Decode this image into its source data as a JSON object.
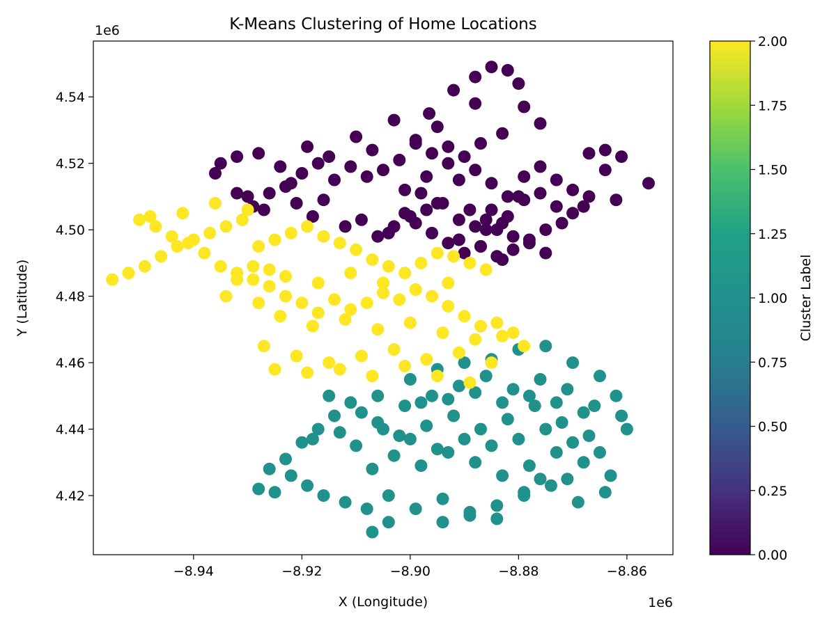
{
  "chart_data": {
    "type": "scatter",
    "title": "K-Means Clustering of Home Locations",
    "xlabel": "X (Longitude)",
    "ylabel": "Y (Latitude)",
    "x_offset_label": "1e6",
    "y_offset_label": "1e6",
    "xlim": [
      -8.9585,
      -8.8515
    ],
    "ylim": [
      4.4022,
      4.5568
    ],
    "x_ticks": [
      -8.94,
      -8.92,
      -8.9,
      -8.88,
      -8.86
    ],
    "x_tick_labels": [
      "−8.94",
      "−8.92",
      "−8.90",
      "−8.88",
      "−8.86"
    ],
    "y_ticks": [
      4.42,
      4.44,
      4.46,
      4.48,
      4.5,
      4.52,
      4.54
    ],
    "y_tick_labels": [
      "4.42",
      "4.44",
      "4.46",
      "4.48",
      "4.50",
      "4.52",
      "4.54"
    ],
    "grid": false,
    "colorbar": {
      "label": "Cluster Label",
      "min": 0.0,
      "max": 2.0,
      "ticks": [
        0.0,
        0.25,
        0.5,
        0.75,
        1.0,
        1.25,
        1.5,
        1.75,
        2.0
      ],
      "tick_labels": [
        "0.00",
        "0.25",
        "0.50",
        "0.75",
        "1.00",
        "1.25",
        "1.50",
        "1.75",
        "2.00"
      ],
      "colormap": "viridis"
    },
    "cluster_colors": {
      "0": "#440154",
      "1": "#21918c",
      "2": "#fde725"
    },
    "series": [
      {
        "cluster": 0,
        "x": [
          -8.8965,
          -8.892,
          -8.888,
          -8.885,
          -8.882,
          -8.88,
          -8.879,
          -8.876,
          -8.883,
          -8.887,
          -8.89,
          -8.893,
          -8.896,
          -8.899,
          -8.902,
          -8.905,
          -8.908,
          -8.911,
          -8.914,
          -8.917,
          -8.92,
          -8.923,
          -8.926,
          -8.929,
          -8.932,
          -8.935,
          -8.936,
          -8.93,
          -8.927,
          -8.921,
          -8.918,
          -8.912,
          -8.909,
          -8.904,
          -8.901,
          -8.898,
          -8.895,
          -8.891,
          -8.888,
          -8.885,
          -8.882,
          -8.879,
          -8.876,
          -8.873,
          -8.87,
          -8.867,
          -8.864,
          -8.861,
          -8.856,
          -8.862,
          -8.868,
          -8.872,
          -8.875,
          -8.878,
          -8.881,
          -8.884,
          -8.887,
          -8.89,
          -8.893,
          -8.896,
          -8.899,
          -8.903,
          -8.906,
          -8.9,
          -8.897,
          -8.894,
          -8.891,
          -8.888,
          -8.885,
          -8.882,
          -8.879,
          -8.876,
          -8.873,
          -8.87,
          -8.867,
          -8.864,
          -8.889,
          -8.886,
          -8.884,
          -8.881,
          -8.878,
          -8.875,
          -8.883,
          -8.888,
          -8.895,
          -8.899,
          -8.903,
          -8.907,
          -8.91,
          -8.915,
          -8.919,
          -8.924,
          -8.928,
          -8.932,
          -8.922,
          -8.916,
          -8.893,
          -8.897,
          -8.901,
          -8.886,
          -8.891,
          -8.883,
          -8.887,
          -8.88
        ],
        "y": [
          4.535,
          4.542,
          4.546,
          4.549,
          4.548,
          4.544,
          4.537,
          4.532,
          4.529,
          4.526,
          4.522,
          4.525,
          4.523,
          4.526,
          4.521,
          4.518,
          4.516,
          4.519,
          4.515,
          4.52,
          4.517,
          4.513,
          4.511,
          4.507,
          4.522,
          4.52,
          4.517,
          4.51,
          4.506,
          4.508,
          4.504,
          4.501,
          4.503,
          4.499,
          4.505,
          4.511,
          4.508,
          4.515,
          4.518,
          4.514,
          4.51,
          4.516,
          4.519,
          4.515,
          4.512,
          4.51,
          4.518,
          4.522,
          4.514,
          4.509,
          4.507,
          4.502,
          4.5,
          4.497,
          4.494,
          4.492,
          4.495,
          4.493,
          4.496,
          4.499,
          4.502,
          4.501,
          4.498,
          4.504,
          4.506,
          4.508,
          4.503,
          4.501,
          4.506,
          4.504,
          4.509,
          4.511,
          4.507,
          4.505,
          4.523,
          4.524,
          4.506,
          4.503,
          4.5,
          4.498,
          4.496,
          4.493,
          4.491,
          4.538,
          4.531,
          4.527,
          4.533,
          4.524,
          4.528,
          4.522,
          4.525,
          4.519,
          4.523,
          4.511,
          4.514,
          4.509,
          4.52,
          4.516,
          4.512,
          4.5,
          4.497,
          4.502,
          4.495,
          4.51
        ]
      },
      {
        "cluster": 1,
        "x": [
          -8.9,
          -8.895,
          -8.89,
          -8.885,
          -8.88,
          -8.875,
          -8.87,
          -8.865,
          -8.862,
          -8.866,
          -8.871,
          -8.876,
          -8.881,
          -8.886,
          -8.891,
          -8.896,
          -8.901,
          -8.906,
          -8.911,
          -8.914,
          -8.917,
          -8.92,
          -8.923,
          -8.926,
          -8.928,
          -8.925,
          -8.922,
          -8.919,
          -8.916,
          -8.912,
          -8.908,
          -8.904,
          -8.899,
          -8.894,
          -8.889,
          -8.884,
          -8.879,
          -8.874,
          -8.869,
          -8.864,
          -8.863,
          -8.868,
          -8.873,
          -8.878,
          -8.883,
          -8.888,
          -8.893,
          -8.898,
          -8.903,
          -8.907,
          -8.91,
          -8.913,
          -8.906,
          -8.902,
          -8.897,
          -8.892,
          -8.887,
          -8.882,
          -8.877,
          -8.872,
          -8.867,
          -8.865,
          -8.87,
          -8.875,
          -8.88,
          -8.885,
          -8.89,
          -8.895,
          -8.9,
          -8.905,
          -8.909,
          -8.898,
          -8.893,
          -8.888,
          -8.883,
          -8.878,
          -8.873,
          -8.868,
          -8.907,
          -8.915,
          -8.918,
          -8.904,
          -8.861,
          -8.86,
          -8.876,
          -8.879,
          -8.871,
          -8.889,
          -8.884,
          -8.894
        ],
        "y": [
          4.455,
          4.458,
          4.46,
          4.461,
          4.464,
          4.465,
          4.46,
          4.456,
          4.45,
          4.447,
          4.452,
          4.455,
          4.452,
          4.456,
          4.453,
          4.45,
          4.447,
          4.45,
          4.448,
          4.444,
          4.44,
          4.436,
          4.431,
          4.428,
          4.422,
          4.421,
          4.426,
          4.423,
          4.42,
          4.418,
          4.416,
          4.42,
          4.416,
          4.419,
          4.415,
          4.417,
          4.42,
          4.423,
          4.418,
          4.421,
          4.426,
          4.43,
          4.433,
          4.429,
          4.426,
          4.43,
          4.433,
          4.429,
          4.432,
          4.428,
          4.435,
          4.439,
          4.442,
          4.438,
          4.441,
          4.444,
          4.44,
          4.443,
          4.447,
          4.442,
          4.438,
          4.433,
          4.436,
          4.44,
          4.437,
          4.435,
          4.437,
          4.434,
          4.437,
          4.44,
          4.445,
          4.448,
          4.449,
          4.451,
          4.448,
          4.45,
          4.448,
          4.445,
          4.409,
          4.45,
          4.437,
          4.412,
          4.444,
          4.44,
          4.425,
          4.421,
          4.425,
          4.414,
          4.413,
          4.412
        ]
      },
      {
        "cluster": 2,
        "x": [
          -8.955,
          -8.952,
          -8.949,
          -8.946,
          -8.943,
          -8.94,
          -8.937,
          -8.934,
          -8.931,
          -8.928,
          -8.925,
          -8.922,
          -8.919,
          -8.916,
          -8.913,
          -8.91,
          -8.907,
          -8.904,
          -8.901,
          -8.898,
          -8.895,
          -8.892,
          -8.889,
          -8.886,
          -8.884,
          -8.881,
          -8.879,
          -8.883,
          -8.887,
          -8.89,
          -8.893,
          -8.896,
          -8.899,
          -8.902,
          -8.905,
          -8.908,
          -8.911,
          -8.914,
          -8.917,
          -8.92,
          -8.923,
          -8.926,
          -8.929,
          -8.932,
          -8.935,
          -8.938,
          -8.941,
          -8.944,
          -8.947,
          -8.95,
          -8.948,
          -8.942,
          -8.936,
          -8.93,
          -8.924,
          -8.918,
          -8.912,
          -8.906,
          -8.9,
          -8.894,
          -8.888,
          -8.927,
          -8.921,
          -8.915,
          -8.909,
          -8.903,
          -8.897,
          -8.891,
          -8.885,
          -8.925,
          -8.919,
          -8.913,
          -8.907,
          -8.901,
          -8.895,
          -8.889,
          -8.929,
          -8.923,
          -8.917,
          -8.911,
          -8.905,
          -8.899,
          -8.893,
          -8.934,
          -8.928,
          -8.932,
          -8.926
        ],
        "y": [
          4.485,
          4.487,
          4.489,
          4.492,
          4.495,
          4.497,
          4.499,
          4.501,
          4.503,
          4.495,
          4.497,
          4.499,
          4.501,
          4.498,
          4.496,
          4.494,
          4.491,
          4.489,
          4.487,
          4.49,
          4.493,
          4.492,
          4.49,
          4.488,
          4.472,
          4.469,
          4.465,
          4.468,
          4.471,
          4.474,
          4.477,
          4.48,
          4.482,
          4.479,
          4.481,
          4.478,
          4.476,
          4.479,
          4.475,
          4.478,
          4.48,
          4.483,
          4.485,
          4.487,
          4.489,
          4.493,
          4.496,
          4.498,
          4.501,
          4.503,
          4.504,
          4.505,
          4.508,
          4.506,
          4.474,
          4.471,
          4.473,
          4.47,
          4.472,
          4.469,
          4.467,
          4.465,
          4.462,
          4.46,
          4.462,
          4.464,
          4.461,
          4.463,
          4.46,
          4.458,
          4.457,
          4.458,
          4.456,
          4.459,
          4.456,
          4.454,
          4.489,
          4.486,
          4.484,
          4.487,
          4.484,
          4.482,
          4.484,
          4.48,
          4.478,
          4.485,
          4.488
        ]
      }
    ]
  }
}
